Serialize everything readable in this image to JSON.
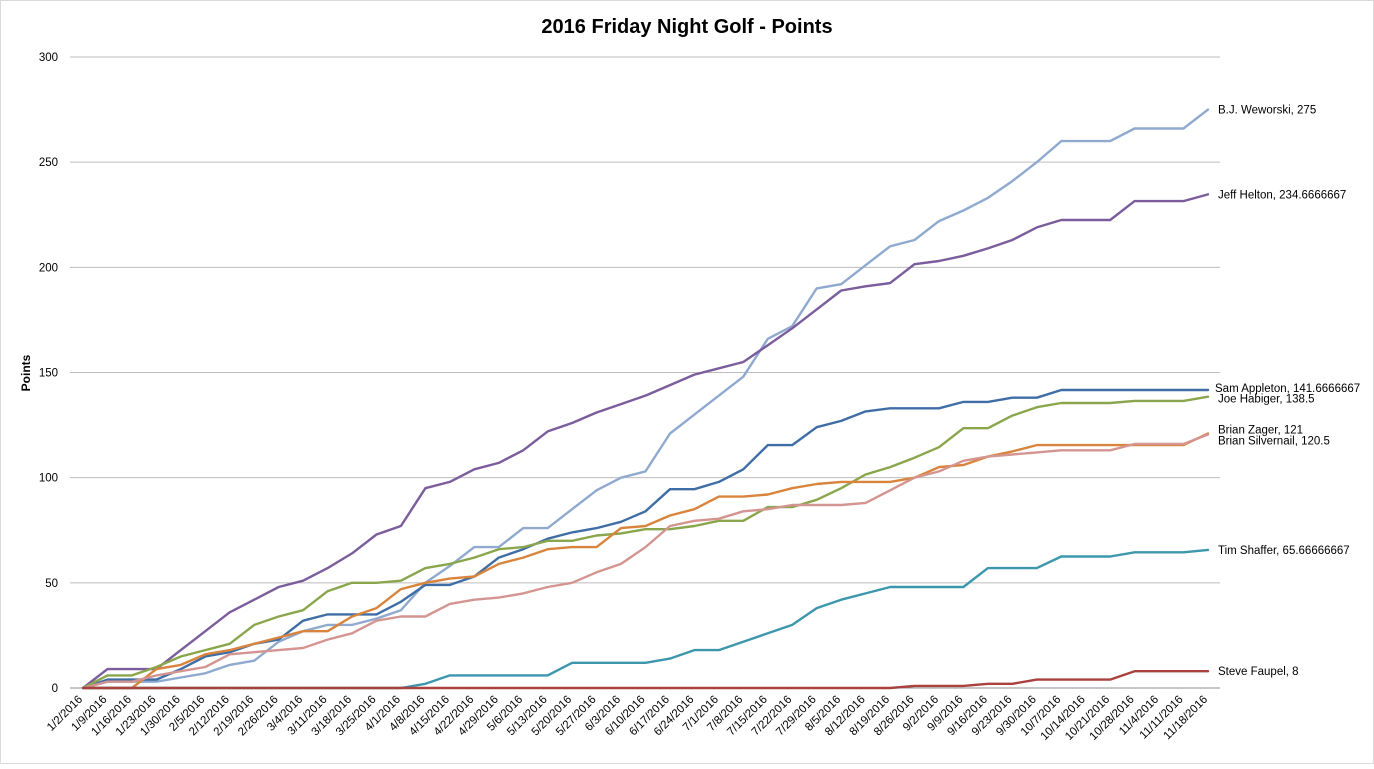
{
  "chart_data": {
    "type": "line",
    "title": "2016 Friday Night Golf - Points",
    "ylabel": "Points",
    "xlabel": "",
    "ylim": [
      0,
      300
    ],
    "yticks": [
      0,
      50,
      100,
      150,
      200,
      250,
      300
    ],
    "grid": true,
    "legend": "none (labels at line ends)",
    "categories": [
      "1/2/2016",
      "1/9/2016",
      "1/16/2016",
      "1/23/2016",
      "1/30/2016",
      "2/5/2016",
      "2/12/2016",
      "2/19/2016",
      "2/26/2016",
      "3/4/2016",
      "3/11/2016",
      "3/18/2016",
      "3/25/2016",
      "4/1/2016",
      "4/8/2016",
      "4/15/2016",
      "4/22/2016",
      "4/29/2016",
      "5/6/2016",
      "5/13/2016",
      "5/20/2016",
      "5/27/2016",
      "6/3/2016",
      "6/10/2016",
      "6/17/2016",
      "6/24/2016",
      "7/1/2016",
      "7/8/2016",
      "7/15/2016",
      "7/22/2016",
      "7/29/2016",
      "8/5/2016",
      "8/12/2016",
      "8/19/2016",
      "8/26/2016",
      "9/2/2016",
      "9/9/2016",
      "9/16/2016",
      "9/23/2016",
      "9/30/2016",
      "10/7/2016",
      "10/14/2016",
      "10/21/2016",
      "10/28/2016",
      "11/4/2016",
      "11/11/2016",
      "11/18/2016"
    ],
    "series": [
      {
        "name": "B.J. Weworski",
        "end_label": "B.J. Weworski, 275",
        "color": "#8fa9cf",
        "values": [
          0,
          3,
          3,
          3,
          5,
          7,
          11,
          13,
          22,
          27,
          30,
          30,
          33,
          37,
          50,
          58,
          67,
          67,
          76,
          76,
          85,
          94,
          100,
          103,
          121,
          130,
          139,
          148,
          166,
          172,
          190,
          192,
          201,
          210,
          213,
          222,
          227,
          233,
          241,
          250,
          260,
          260,
          260,
          266,
          266,
          266,
          275
        ]
      },
      {
        "name": "Jeff Helton",
        "end_label": "Jeff Helton, 234.6666667",
        "color": "#7b5c9c",
        "values": [
          0,
          9,
          9,
          9,
          18,
          27,
          36,
          42,
          48,
          51,
          57,
          64,
          73,
          77,
          95,
          98,
          104,
          107,
          113,
          122,
          126,
          131,
          135,
          139,
          144,
          149,
          152,
          155,
          163,
          171,
          180,
          189,
          191,
          192.5,
          201.5,
          203,
          205.5,
          209,
          213,
          219,
          222.5,
          222.5,
          222.5,
          231.5,
          231.5,
          231.5,
          234.6666667
        ]
      },
      {
        "name": "Sam Appleton",
        "end_label": "Sam Appleton, 141.6666667",
        "color": "#3f6ea6",
        "values": [
          0,
          4,
          4,
          4,
          9,
          15,
          17,
          21,
          23,
          32,
          35,
          35,
          35,
          41,
          49,
          49,
          53,
          62,
          66,
          71,
          74,
          76,
          79,
          84,
          94.5,
          94.5,
          98,
          104,
          115.5,
          115.5,
          124,
          127,
          131.5,
          133,
          133,
          133,
          136,
          136,
          138,
          138,
          141.6666667,
          141.6666667,
          141.6666667,
          141.6666667,
          141.6666667,
          141.6666667,
          141.6666667
        ]
      },
      {
        "name": "Joe Habiger",
        "end_label": "Joe Habiger, 138.5",
        "color": "#8aa64c",
        "values": [
          0,
          6,
          6,
          10,
          15,
          18,
          21,
          30,
          34,
          37,
          46,
          50,
          50,
          51,
          57,
          59,
          62,
          66,
          67,
          70,
          70,
          72.5,
          73.5,
          75.5,
          75.5,
          77,
          79.5,
          79.5,
          86,
          86,
          89.5,
          95,
          101.5,
          105,
          109.5,
          114.5,
          123.5,
          123.5,
          129.5,
          133.5,
          135.5,
          135.5,
          135.5,
          136.5,
          136.5,
          136.5,
          138.5
        ]
      },
      {
        "name": "Brian Zager",
        "end_label": "Brian Zager, 121",
        "color": "#d9843c",
        "values": [
          0,
          0,
          0,
          9,
          11,
          16,
          18,
          21,
          24,
          27,
          27,
          34,
          38,
          47,
          50,
          52,
          53,
          59,
          62,
          66,
          67,
          67,
          76,
          77,
          82,
          85,
          91,
          91,
          92,
          95,
          97,
          98,
          98,
          98,
          100,
          105,
          106,
          110,
          112.5,
          115.5,
          115.5,
          115.5,
          115.5,
          115.5,
          115.5,
          115.5,
          121
        ]
      },
      {
        "name": "Brian Silvernail",
        "end_label": "Brian Silvernail, 120.5",
        "color": "#d49591",
        "values": [
          0,
          3,
          3,
          6,
          8,
          10,
          16,
          17,
          18,
          19,
          23,
          26,
          32,
          34,
          34,
          40,
          42,
          43,
          45,
          48,
          50,
          55,
          59,
          67,
          77,
          79.5,
          80.5,
          84,
          85,
          87,
          87,
          87,
          88,
          94,
          100,
          103,
          108,
          110,
          111,
          112,
          113,
          113,
          113,
          116,
          116,
          116,
          120.5
        ]
      },
      {
        "name": "Tim Shaffer",
        "end_label": "Tim Shaffer, 65.66666667",
        "color": "#3c97ad",
        "values": [
          0,
          0,
          0,
          0,
          0,
          0,
          0,
          0,
          0,
          0,
          0,
          0,
          0,
          0,
          2,
          6,
          6,
          6,
          6,
          6,
          12,
          12,
          12,
          12,
          14,
          18,
          18,
          22,
          26,
          30,
          38,
          42,
          45,
          48,
          48,
          48,
          48,
          57,
          57,
          57,
          62.5,
          62.5,
          62.5,
          64.5,
          64.5,
          64.5,
          65.66666667
        ]
      },
      {
        "name": "Steve Faupel",
        "end_label": "Steve Faupel, 8",
        "color": "#a9413d",
        "values": [
          0,
          0,
          0,
          0,
          0,
          0,
          0,
          0,
          0,
          0,
          0,
          0,
          0,
          0,
          0,
          0,
          0,
          0,
          0,
          0,
          0,
          0,
          0,
          0,
          0,
          0,
          0,
          0,
          0,
          0,
          0,
          0,
          0,
          0,
          1,
          1,
          1,
          2,
          2,
          4,
          4,
          4,
          4,
          8,
          8,
          8,
          8
        ]
      }
    ]
  }
}
